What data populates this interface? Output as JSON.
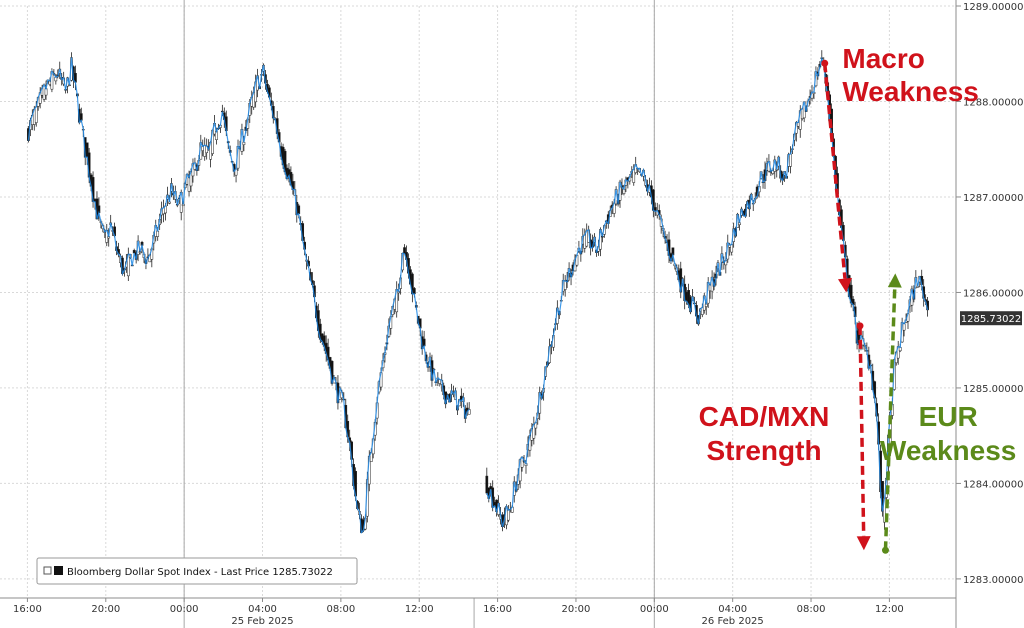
{
  "chart_data": {
    "type": "candlestick",
    "title": "",
    "series_name": "Bloomberg Dollar Spot Index",
    "legend_text": "Bloomberg Dollar Spot Index - Last Price 1285.73022",
    "last_price_label": "1285.73022",
    "last_price": 1285.73022,
    "ylim": [
      1282.8,
      1289.0
    ],
    "y_ticks": [
      {
        "value": 1289,
        "label": "1289.00000"
      },
      {
        "value": 1288,
        "label": "1288.00000"
      },
      {
        "value": 1287,
        "label": "1287.00000"
      },
      {
        "value": 1286,
        "label": "1286.00000"
      },
      {
        "value": 1285,
        "label": "1285.00000"
      },
      {
        "value": 1284,
        "label": "1284.00000"
      },
      {
        "value": 1283,
        "label": "1283.00000"
      }
    ],
    "xlim_hours": [
      -1.4,
      47.4
    ],
    "x_ticks": [
      {
        "hour": 0,
        "label": "16:00"
      },
      {
        "hour": 4,
        "label": "20:00"
      },
      {
        "hour": 8,
        "label": "00:00"
      },
      {
        "hour": 12,
        "label": "04:00"
      },
      {
        "hour": 16,
        "label": "08:00"
      },
      {
        "hour": 20,
        "label": "12:00"
      },
      {
        "hour": 24,
        "label": "16:00"
      },
      {
        "hour": 28,
        "label": "20:00"
      },
      {
        "hour": 32,
        "label": "00:00"
      },
      {
        "hour": 36,
        "label": "04:00"
      },
      {
        "hour": 40,
        "label": "08:00"
      },
      {
        "hour": 44,
        "label": "12:00"
      }
    ],
    "day_separators": [
      {
        "hour": 8,
        "label": "25 Feb 2025",
        "label_hour": 12
      },
      {
        "hour": 32,
        "label": "26 Feb 2025",
        "label_hour": 36
      }
    ],
    "session_break_hour": 22.8,
    "price_path": [
      [
        0.0,
        1287.65
      ],
      [
        0.5,
        1287.9
      ],
      [
        1.0,
        1288.15
      ],
      [
        1.6,
        1288.3
      ],
      [
        2.0,
        1288.1
      ],
      [
        2.3,
        1288.35
      ],
      [
        2.6,
        1288.0
      ],
      [
        3.0,
        1287.5
      ],
      [
        3.4,
        1287.05
      ],
      [
        3.7,
        1286.75
      ],
      [
        4.0,
        1286.55
      ],
      [
        4.3,
        1286.7
      ],
      [
        4.6,
        1286.45
      ],
      [
        5.0,
        1286.2
      ],
      [
        5.3,
        1286.35
      ],
      [
        5.8,
        1286.45
      ],
      [
        6.2,
        1286.35
      ],
      [
        6.6,
        1286.6
      ],
      [
        7.0,
        1286.9
      ],
      [
        7.4,
        1287.05
      ],
      [
        7.8,
        1286.9
      ],
      [
        8.1,
        1287.1
      ],
      [
        8.5,
        1287.25
      ],
      [
        8.9,
        1287.5
      ],
      [
        9.3,
        1287.45
      ],
      [
        9.7,
        1287.75
      ],
      [
        10.0,
        1287.9
      ],
      [
        10.3,
        1287.5
      ],
      [
        10.6,
        1287.3
      ],
      [
        11.0,
        1287.6
      ],
      [
        11.4,
        1287.9
      ],
      [
        11.8,
        1288.2
      ],
      [
        12.1,
        1288.3
      ],
      [
        12.4,
        1288.0
      ],
      [
        12.7,
        1287.8
      ],
      [
        13.0,
        1287.5
      ],
      [
        13.4,
        1287.2
      ],
      [
        13.8,
        1286.9
      ],
      [
        14.2,
        1286.4
      ],
      [
        14.6,
        1286.0
      ],
      [
        15.0,
        1285.6
      ],
      [
        15.4,
        1285.3
      ],
      [
        15.8,
        1285.0
      ],
      [
        16.2,
        1284.8
      ],
      [
        16.5,
        1284.4
      ],
      [
        16.9,
        1283.7
      ],
      [
        17.2,
        1283.5
      ],
      [
        17.5,
        1284.2
      ],
      [
        17.9,
        1284.9
      ],
      [
        18.3,
        1285.4
      ],
      [
        18.6,
        1285.75
      ],
      [
        19.0,
        1286.0
      ],
      [
        19.2,
        1286.5
      ],
      [
        19.5,
        1286.3
      ],
      [
        19.8,
        1285.9
      ],
      [
        20.3,
        1285.4
      ],
      [
        20.8,
        1285.1
      ],
      [
        21.3,
        1284.95
      ],
      [
        21.8,
        1284.9
      ],
      [
        22.3,
        1284.8
      ],
      [
        22.7,
        1284.7
      ],
      [
        23.4,
        1284.05
      ],
      [
        23.9,
        1283.8
      ],
      [
        24.3,
        1283.6
      ],
      [
        24.7,
        1283.75
      ],
      [
        25.1,
        1284.1
      ],
      [
        25.5,
        1284.3
      ],
      [
        25.9,
        1284.6
      ],
      [
        26.3,
        1285.0
      ],
      [
        26.7,
        1285.4
      ],
      [
        27.1,
        1285.8
      ],
      [
        27.5,
        1286.1
      ],
      [
        27.9,
        1286.3
      ],
      [
        28.3,
        1286.5
      ],
      [
        28.7,
        1286.55
      ],
      [
        29.1,
        1286.45
      ],
      [
        29.5,
        1286.7
      ],
      [
        29.9,
        1286.9
      ],
      [
        30.3,
        1287.05
      ],
      [
        30.7,
        1287.15
      ],
      [
        31.1,
        1287.25
      ],
      [
        31.5,
        1287.2
      ],
      [
        31.9,
        1287.0
      ],
      [
        32.3,
        1286.75
      ],
      [
        32.7,
        1286.5
      ],
      [
        33.1,
        1286.3
      ],
      [
        33.5,
        1286.05
      ],
      [
        33.9,
        1285.9
      ],
      [
        34.3,
        1285.75
      ],
      [
        34.7,
        1285.95
      ],
      [
        35.1,
        1286.15
      ],
      [
        35.5,
        1286.3
      ],
      [
        35.9,
        1286.5
      ],
      [
        36.3,
        1286.75
      ],
      [
        36.7,
        1286.9
      ],
      [
        37.1,
        1287.0
      ],
      [
        37.5,
        1287.2
      ],
      [
        37.9,
        1287.3
      ],
      [
        38.3,
        1287.35
      ],
      [
        38.7,
        1287.2
      ],
      [
        39.1,
        1287.55
      ],
      [
        39.5,
        1287.8
      ],
      [
        39.9,
        1288.0
      ],
      [
        40.3,
        1288.25
      ],
      [
        40.6,
        1288.45
      ],
      [
        40.9,
        1288.1
      ],
      [
        41.2,
        1287.4
      ],
      [
        41.5,
        1286.8
      ],
      [
        41.8,
        1286.3
      ],
      [
        42.1,
        1285.9
      ],
      [
        42.4,
        1285.55
      ],
      [
        42.8,
        1285.4
      ],
      [
        43.1,
        1285.25
      ],
      [
        43.4,
        1284.7
      ],
      [
        43.7,
        1283.6
      ],
      [
        44.0,
        1284.4
      ],
      [
        44.3,
        1285.2
      ],
      [
        44.6,
        1285.5
      ],
      [
        44.9,
        1285.75
      ],
      [
        45.2,
        1285.95
      ],
      [
        45.5,
        1286.15
      ],
      [
        45.8,
        1286.0
      ],
      [
        46.1,
        1285.73
      ]
    ],
    "annotations": [
      {
        "text_lines": [
          "Macro",
          "Weakness"
        ],
        "color": "#d0121b",
        "line_height": 33,
        "align": "start",
        "anchor_hour": 41.6,
        "anchor_value": 1288.35
      },
      {
        "text_lines": [
          "CAD/MXN",
          "Strength"
        ],
        "color": "#d0121b",
        "line_height": 34,
        "align": "middle",
        "anchor_hour": 37.6,
        "anchor_value": 1284.6
      },
      {
        "text_lines": [
          "EUR",
          "Weakness"
        ],
        "color": "#5b8a1a",
        "line_height": 34,
        "align": "middle",
        "anchor_hour": 47.0,
        "anchor_value": 1284.6
      }
    ],
    "arrows": [
      {
        "color": "#d0121b",
        "from": [
          40.7,
          1288.4
        ],
        "to": [
          41.8,
          1286.0
        ]
      },
      {
        "color": "#d0121b",
        "from": [
          42.5,
          1285.65
        ],
        "to": [
          42.7,
          1283.3
        ]
      },
      {
        "color": "#5b8a1a",
        "from": [
          43.8,
          1283.3
        ],
        "to": [
          44.3,
          1286.2
        ]
      }
    ],
    "colors": {
      "up_candle": "#ffffff",
      "down_candle": "#111111",
      "close_line": "#1e88e5",
      "grid": "#d9d9d9",
      "axis": "#8c8c8c",
      "last_price_bg": "#333333"
    }
  }
}
